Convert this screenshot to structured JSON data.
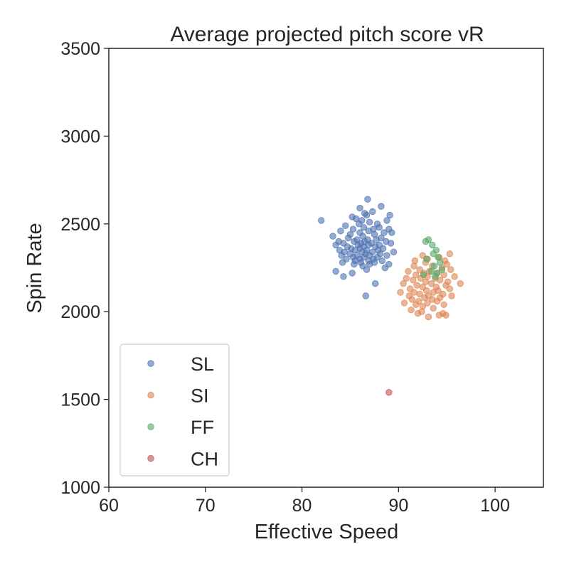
{
  "chart_data": {
    "type": "scatter",
    "title": "Average projected pitch score vR",
    "xlabel": "Effective Speed",
    "ylabel": "Spin Rate",
    "xlim": [
      60,
      105
    ],
    "ylim": [
      1000,
      3500
    ],
    "xticks": [
      "60",
      "70",
      "80",
      "90",
      "100"
    ],
    "xtick_values": [
      60,
      70,
      80,
      90,
      100
    ],
    "yticks": [
      "1000",
      "1500",
      "2000",
      "2500",
      "3000",
      "3500"
    ],
    "ytick_values": [
      1000,
      1500,
      2000,
      2500,
      3000,
      3500
    ],
    "grid": false,
    "legend_position": "lower-left",
    "series": [
      {
        "name": "SL",
        "color": "#4c72b0",
        "points": [
          [
            86.8,
            2640
          ],
          [
            86.0,
            2590
          ],
          [
            88.2,
            2600
          ],
          [
            87.3,
            2570
          ],
          [
            86.5,
            2560
          ],
          [
            85.2,
            2540
          ],
          [
            86.7,
            2550
          ],
          [
            85.6,
            2530
          ],
          [
            89.1,
            2550
          ],
          [
            88.8,
            2520
          ],
          [
            86.2,
            2520
          ],
          [
            87.0,
            2510
          ],
          [
            87.8,
            2500
          ],
          [
            85.9,
            2500
          ],
          [
            84.5,
            2490
          ],
          [
            86.4,
            2480
          ],
          [
            88.0,
            2480
          ],
          [
            85.3,
            2470
          ],
          [
            87.4,
            2470
          ],
          [
            89.0,
            2470
          ],
          [
            84.0,
            2460
          ],
          [
            86.9,
            2460
          ],
          [
            86.0,
            2450
          ],
          [
            88.5,
            2450
          ],
          [
            89.3,
            2450
          ],
          [
            85.0,
            2440
          ],
          [
            87.5,
            2440
          ],
          [
            83.2,
            2430
          ],
          [
            86.3,
            2430
          ],
          [
            84.8,
            2420
          ],
          [
            88.2,
            2420
          ],
          [
            85.7,
            2410
          ],
          [
            86.8,
            2410
          ],
          [
            87.7,
            2410
          ],
          [
            83.8,
            2400
          ],
          [
            85.4,
            2400
          ],
          [
            86.5,
            2400
          ],
          [
            88.7,
            2400
          ],
          [
            84.3,
            2390
          ],
          [
            86.1,
            2390
          ],
          [
            87.2,
            2390
          ],
          [
            89.2,
            2390
          ],
          [
            83.5,
            2380
          ],
          [
            85.8,
            2380
          ],
          [
            86.9,
            2380
          ],
          [
            88.0,
            2380
          ],
          [
            84.7,
            2370
          ],
          [
            86.4,
            2370
          ],
          [
            87.6,
            2370
          ],
          [
            85.1,
            2360
          ],
          [
            86.0,
            2360
          ],
          [
            88.4,
            2360
          ],
          [
            83.9,
            2350
          ],
          [
            85.5,
            2350
          ],
          [
            86.7,
            2350
          ],
          [
            87.9,
            2350
          ],
          [
            84.4,
            2340
          ],
          [
            86.2,
            2340
          ],
          [
            87.3,
            2340
          ],
          [
            89.5,
            2340
          ],
          [
            85.0,
            2330
          ],
          [
            86.6,
            2330
          ],
          [
            88.1,
            2330
          ],
          [
            84.1,
            2320
          ],
          [
            85.7,
            2320
          ],
          [
            87.0,
            2320
          ],
          [
            88.8,
            2320
          ],
          [
            85.3,
            2310
          ],
          [
            86.4,
            2310
          ],
          [
            87.8,
            2310
          ],
          [
            84.6,
            2300
          ],
          [
            86.0,
            2300
          ],
          [
            87.4,
            2300
          ],
          [
            85.5,
            2290
          ],
          [
            86.9,
            2290
          ],
          [
            88.3,
            2290
          ],
          [
            84.2,
            2280
          ],
          [
            86.1,
            2280
          ],
          [
            87.5,
            2280
          ],
          [
            85.4,
            2270
          ],
          [
            87.0,
            2270
          ],
          [
            86.3,
            2260
          ],
          [
            88.6,
            2250
          ],
          [
            83.5,
            2230
          ],
          [
            85.2,
            2220
          ],
          [
            86.7,
            2240
          ],
          [
            84.3,
            2200
          ],
          [
            87.6,
            2160
          ],
          [
            86.6,
            2090
          ],
          [
            82.0,
            2520
          ],
          [
            89.0,
            2270
          ]
        ]
      },
      {
        "name": "SI",
        "color": "#dd8452",
        "points": [
          [
            95.3,
            2330
          ],
          [
            92.5,
            2320
          ],
          [
            94.2,
            2310
          ],
          [
            93.0,
            2300
          ],
          [
            91.7,
            2290
          ],
          [
            94.8,
            2290
          ],
          [
            92.8,
            2280
          ],
          [
            95.0,
            2270
          ],
          [
            91.6,
            2260
          ],
          [
            93.5,
            2260
          ],
          [
            94.5,
            2250
          ],
          [
            92.2,
            2240
          ],
          [
            95.4,
            2240
          ],
          [
            91.0,
            2230
          ],
          [
            93.2,
            2230
          ],
          [
            94.0,
            2220
          ],
          [
            92.6,
            2220
          ],
          [
            91.8,
            2210
          ],
          [
            94.7,
            2210
          ],
          [
            93.0,
            2200
          ],
          [
            95.8,
            2200
          ],
          [
            90.8,
            2190
          ],
          [
            92.3,
            2190
          ],
          [
            93.8,
            2190
          ],
          [
            91.5,
            2180
          ],
          [
            94.3,
            2180
          ],
          [
            92.8,
            2170
          ],
          [
            95.1,
            2170
          ],
          [
            90.5,
            2160
          ],
          [
            93.4,
            2160
          ],
          [
            96.4,
            2160
          ],
          [
            91.9,
            2150
          ],
          [
            94.9,
            2150
          ],
          [
            92.5,
            2140
          ],
          [
            93.9,
            2140
          ],
          [
            91.2,
            2130
          ],
          [
            95.3,
            2130
          ],
          [
            92.9,
            2120
          ],
          [
            94.1,
            2120
          ],
          [
            90.2,
            2110
          ],
          [
            91.6,
            2110
          ],
          [
            93.6,
            2110
          ],
          [
            92.2,
            2100
          ],
          [
            94.6,
            2100
          ],
          [
            91.1,
            2090
          ],
          [
            93.1,
            2090
          ],
          [
            95.5,
            2090
          ],
          [
            92.7,
            2080
          ],
          [
            94.3,
            2080
          ],
          [
            91.4,
            2070
          ],
          [
            93.5,
            2070
          ],
          [
            92.1,
            2060
          ],
          [
            94.0,
            2060
          ],
          [
            90.6,
            2050
          ],
          [
            93.0,
            2050
          ],
          [
            91.8,
            2040
          ],
          [
            94.7,
            2040
          ],
          [
            92.5,
            2030
          ],
          [
            93.6,
            2020
          ],
          [
            91.3,
            2010
          ],
          [
            92.4,
            2000
          ],
          [
            94.6,
            1990
          ],
          [
            92.0,
            1990
          ],
          [
            94.2,
            1980
          ],
          [
            93.1,
            1970
          ],
          [
            94.9,
            1980
          ]
        ]
      },
      {
        "name": "FF",
        "color": "#55a868",
        "points": [
          [
            92.8,
            2400
          ],
          [
            93.1,
            2410
          ],
          [
            93.5,
            2380
          ],
          [
            93.9,
            2350
          ],
          [
            93.6,
            2330
          ],
          [
            94.1,
            2310
          ],
          [
            92.9,
            2300
          ],
          [
            94.3,
            2280
          ],
          [
            93.7,
            2260
          ],
          [
            94.5,
            2240
          ],
          [
            93.4,
            2230
          ],
          [
            94.0,
            2220
          ],
          [
            92.6,
            2210
          ],
          [
            93.8,
            2200
          ]
        ]
      },
      {
        "name": "CH",
        "color": "#c44e52",
        "points": [
          [
            89.0,
            1540
          ]
        ]
      }
    ]
  }
}
